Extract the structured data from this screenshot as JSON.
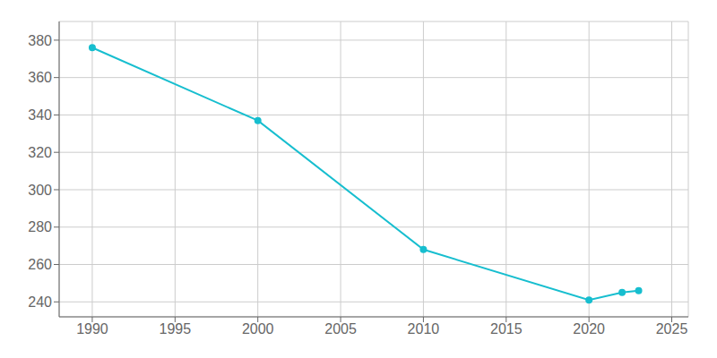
{
  "chart_data": {
    "type": "line",
    "x": [
      1990,
      2000,
      2010,
      2020,
      2022,
      2023
    ],
    "values": [
      376,
      337,
      268,
      241,
      245,
      246
    ],
    "color": "#17becf",
    "marker": "circle",
    "xlim": [
      1988,
      2026
    ],
    "ylim": [
      232,
      390
    ],
    "xticks": [
      1990,
      1995,
      2000,
      2005,
      2010,
      2015,
      2020,
      2025
    ],
    "yticks": [
      240,
      260,
      280,
      300,
      320,
      340,
      360,
      380
    ],
    "grid": true
  }
}
